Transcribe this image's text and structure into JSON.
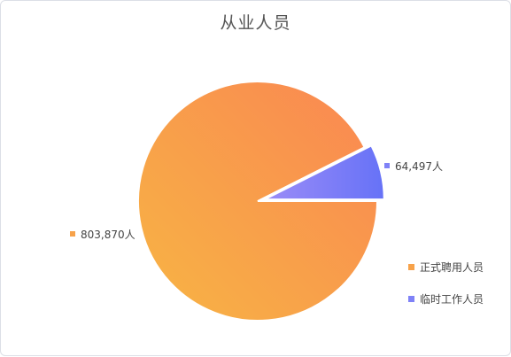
{
  "chart_data": {
    "type": "pie",
    "title": "从业人员",
    "slices": [
      {
        "name": "正式聘用人员",
        "value": 803870,
        "label": "803,870人",
        "color_start": "#f7b544",
        "color_end": "#fa8652",
        "exploded": false
      },
      {
        "name": "临时工作人员",
        "value": 64497,
        "label": "64,497人",
        "color_start": "#9b8cf7",
        "color_end": "#6672f7",
        "exploded": true
      }
    ],
    "legend": {
      "position": "bottom-right",
      "items": [
        {
          "name": "正式聘用人员",
          "color": "#f7a24a"
        },
        {
          "name": "临时工作人员",
          "color": "#7f82f7"
        }
      ]
    }
  }
}
